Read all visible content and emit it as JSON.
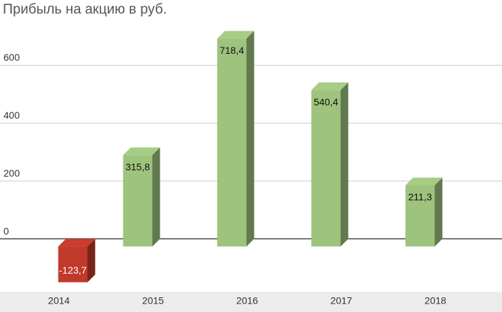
{
  "chart_data": {
    "type": "bar3d",
    "title": "Прибыль на акцию в руб.",
    "categories": [
      "2014",
      "2015",
      "2016",
      "2017",
      "2018"
    ],
    "values": [
      -123.7,
      315.8,
      718.4,
      540.4,
      211.3
    ],
    "value_labels": [
      "-123,7",
      "315,8",
      "718,4",
      "540,4",
      "211,3"
    ],
    "colors": [
      "#c0392b",
      "#9dc37d",
      "#9dc37d",
      "#9dc37d",
      "#9dc37d"
    ],
    "ylim": [
      -200,
      700
    ],
    "yticks": [
      0,
      200,
      400,
      600
    ],
    "grid": true
  }
}
